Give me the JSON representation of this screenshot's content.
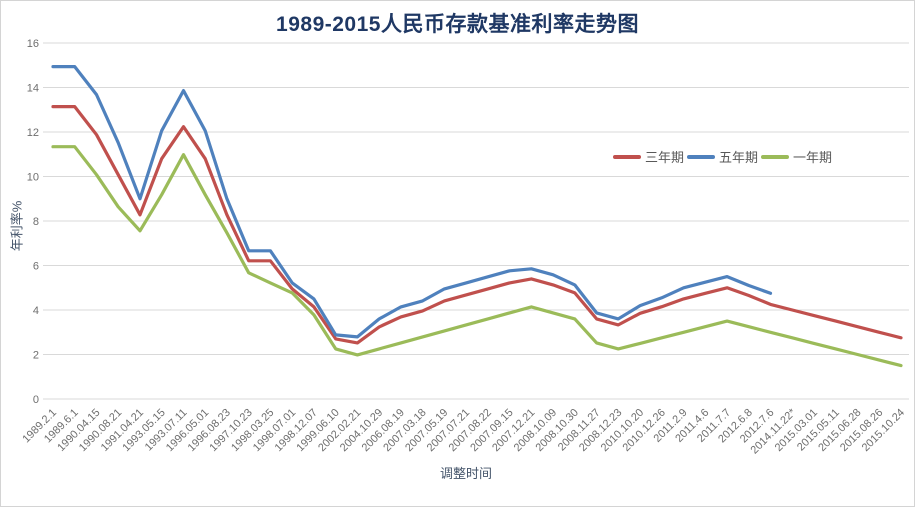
{
  "chart_data": {
    "type": "line",
    "title": "1989-2015人民币存款基准利率走势图",
    "xlabel": "调整时间",
    "ylabel": "年利率%",
    "ylim": [
      0,
      16
    ],
    "ytick_step": 2,
    "grid": "horizontal",
    "legend_position": "inside-upper-right",
    "categories": [
      "1989.2.1",
      "1989.6.1",
      "1990.04.15",
      "1990.08.21",
      "1991.04.21",
      "1993.05.15",
      "1993.07.11",
      "1996.05.01",
      "1996.08.23",
      "1997.10.23",
      "1998.03.25",
      "1998.07.01",
      "1998.12.07",
      "1999.06.10",
      "2002.02.21",
      "2004.10.29",
      "2006.08.19",
      "2007.03.18",
      "2007.05.19",
      "2007.07.21",
      "2007.08.22",
      "2007.09.15",
      "2007.12.21",
      "2008.10.09",
      "2008.10.30",
      "2008.11.27",
      "2008.12.23",
      "2010.10.20",
      "2010.12.26",
      "2011.2.9",
      "2011.4.6",
      "2011.7.7",
      "2012.6.8",
      "2012.7.6",
      "2014.11.22*",
      "2015.03.01",
      "2015.05.11",
      "2015.06.28",
      "2015.08.26",
      "2015.10.24"
    ],
    "series": [
      {
        "id": "three-year",
        "name": "三年期",
        "color": "#C0504D",
        "values": [
          13.14,
          13.14,
          11.88,
          10.08,
          8.28,
          10.8,
          12.24,
          10.8,
          8.28,
          6.21,
          6.21,
          4.95,
          4.14,
          2.7,
          2.52,
          3.24,
          3.69,
          3.96,
          4.41,
          4.68,
          4.95,
          5.22,
          5.4,
          5.13,
          4.77,
          3.6,
          3.33,
          3.85,
          4.15,
          4.5,
          4.75,
          5.0,
          4.65,
          4.25,
          4.0,
          3.75,
          3.5,
          3.25,
          3.0,
          2.75
        ]
      },
      {
        "id": "five-year",
        "name": "五年期",
        "color": "#4F81BD",
        "values": [
          14.94,
          14.94,
          13.68,
          11.52,
          9.0,
          12.06,
          13.86,
          12.06,
          9.0,
          6.66,
          6.66,
          5.22,
          4.5,
          2.88,
          2.79,
          3.6,
          4.14,
          4.41,
          4.95,
          5.22,
          5.49,
          5.76,
          5.85,
          5.58,
          5.13,
          3.87,
          3.6,
          4.2,
          4.55,
          5.0,
          5.25,
          5.5,
          5.1,
          4.75,
          null,
          null,
          null,
          null,
          null,
          null
        ]
      },
      {
        "id": "one-year",
        "name": "一年期",
        "color": "#9BBB59",
        "values": [
          11.34,
          11.34,
          10.08,
          8.64,
          7.56,
          9.18,
          10.98,
          9.18,
          7.47,
          5.67,
          5.22,
          4.77,
          3.78,
          2.25,
          1.98,
          2.25,
          2.52,
          2.79,
          3.06,
          3.33,
          3.6,
          3.87,
          4.14,
          3.87,
          3.6,
          2.52,
          2.25,
          2.5,
          2.75,
          3.0,
          3.25,
          3.5,
          3.25,
          3.0,
          2.75,
          2.5,
          2.25,
          2.0,
          1.75,
          1.5
        ]
      }
    ],
    "y_tick_labels": [
      "0",
      "2",
      "4",
      "6",
      "8",
      "10",
      "12",
      "14",
      "16"
    ]
  },
  "colors": {
    "title": "#1F3864",
    "axis_title": "#44546A",
    "tick_label": "#6E6E6E",
    "gridline": "#D9D9D9"
  }
}
